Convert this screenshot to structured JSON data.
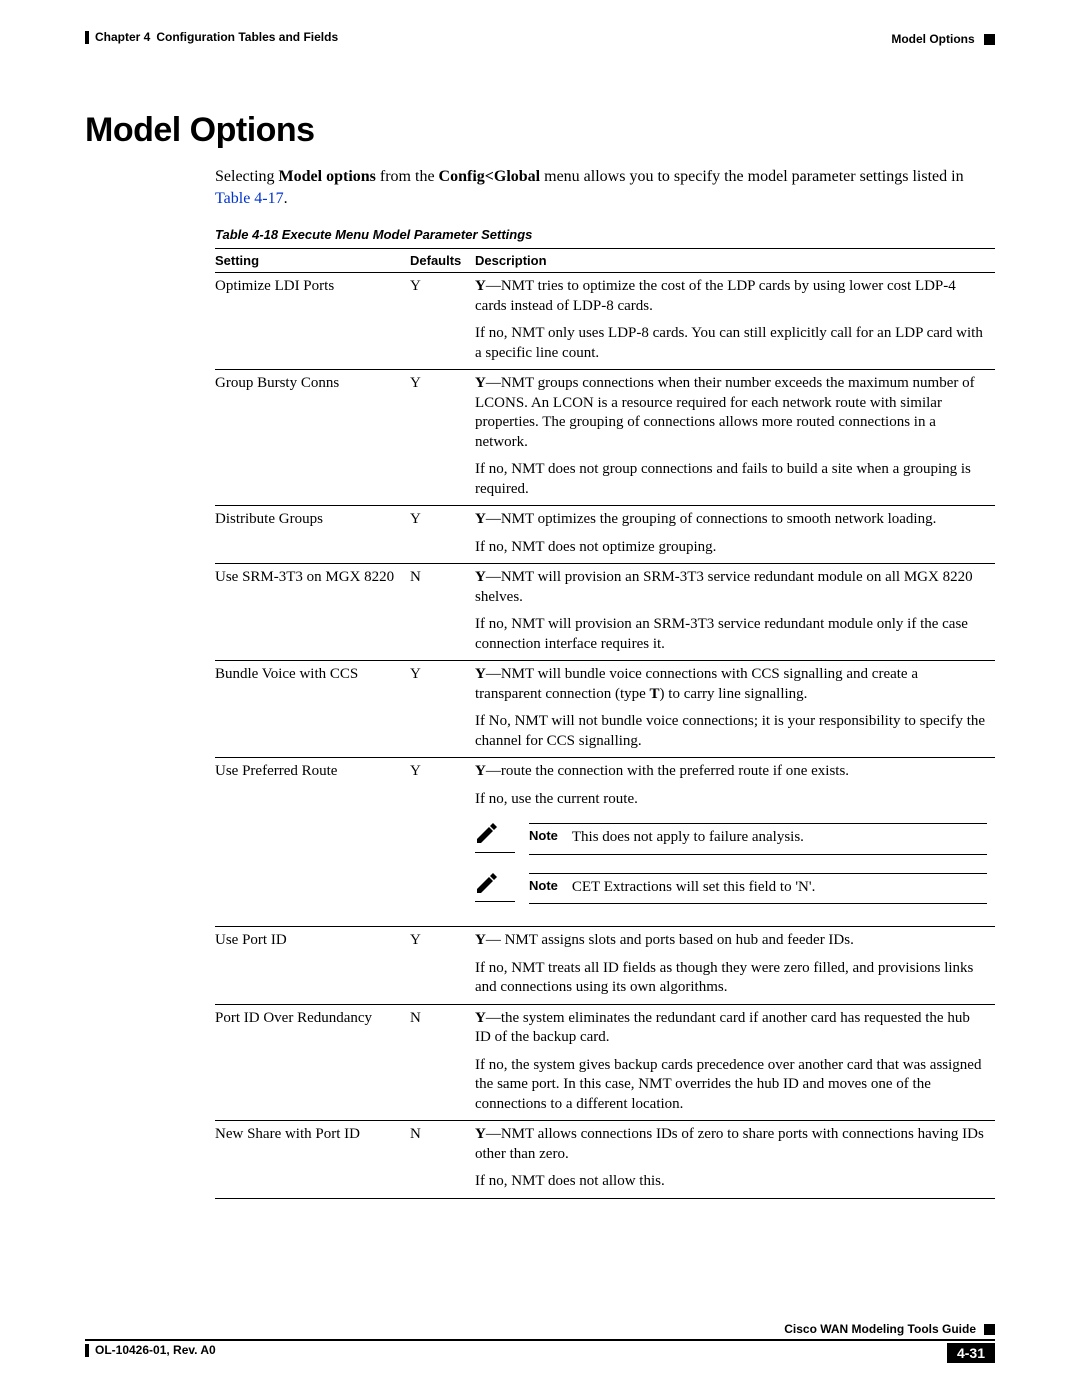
{
  "colors": {
    "text": "#000000",
    "link": "#0033cc",
    "background": "#ffffff"
  },
  "fontsizes": {
    "title_pt": 26,
    "body_pt": 11,
    "caption_pt": 10,
    "header_pt": 9
  },
  "header": {
    "chapter_label": "Chapter 4",
    "chapter_title": "Configuration Tables and Fields",
    "section": "Model Options"
  },
  "title": "Model Options",
  "intro": {
    "pre": "Selecting ",
    "bold1": "Model options",
    "mid1": " from the ",
    "bold2": "Config<Global",
    "mid2": " menu allows you to specify the model parameter settings listed in ",
    "link": "Table 4-17",
    "end": "."
  },
  "table_caption": "Table 4-18   Execute Menu Model Parameter Settings",
  "columns": {
    "setting": "Setting",
    "defaults": "Defaults",
    "description": "Description"
  },
  "note_label": "Note",
  "rows": [
    {
      "setting": "Optimize LDI Ports",
      "default": "Y",
      "desc": [
        {
          "bold_lead": "Y",
          "text": "—NMT tries to optimize the cost of the LDP cards by using lower cost LDP-4 cards instead of LDP-8 cards."
        },
        {
          "text": "If no, NMT only uses LDP-8 cards. You can still explicitly call for an LDP card with a specific line count."
        }
      ]
    },
    {
      "setting": "Group Bursty Conns",
      "default": "Y",
      "desc": [
        {
          "bold_lead": "Y",
          "text": "—NMT groups connections when their number exceeds the maximum number of LCONS. An LCON is a resource required for each network route with similar properties. The grouping of connections allows more routed connections in a network."
        },
        {
          "text": "If no, NMT does not group connections and fails to build a site when a grouping is required."
        }
      ]
    },
    {
      "setting": "Distribute Groups",
      "default": "Y",
      "desc": [
        {
          "bold_lead": "Y",
          "text": "—NMT optimizes the grouping of connections to smooth network loading."
        },
        {
          "text": "If no, NMT does not optimize grouping."
        }
      ]
    },
    {
      "setting": "Use SRM-3T3 on MGX 8220",
      "default": "N",
      "desc": [
        {
          "bold_lead": "Y",
          "text": "—NMT will provision an SRM-3T3 service redundant module on all MGX 8220 shelves."
        },
        {
          "text": "If no, NMT will provision an SRM-3T3 service redundant module only if the case connection interface requires it."
        }
      ]
    },
    {
      "setting": "Bundle Voice with CCS",
      "default": "Y",
      "desc": [
        {
          "bold_lead": "Y",
          "text_pre": "—NMT will bundle voice connections with CCS signalling and create a transparent connection (type ",
          "bold_inner": "T",
          "text_post": ") to carry line signalling."
        },
        {
          "text": "If No, NMT will not bundle voice connections; it is your responsibility to specify the channel for CCS signalling."
        }
      ]
    },
    {
      "setting": "Use Preferred Route",
      "default": "Y",
      "desc": [
        {
          "bold_lead": "Y",
          "text": "—route the connection with the preferred route if one exists."
        },
        {
          "text": "If no, use the current route."
        }
      ],
      "notes": [
        "This does not apply to failure analysis.",
        "CET Extractions will set this field to 'N'."
      ]
    },
    {
      "setting": "Use Port ID",
      "default": "Y",
      "desc": [
        {
          "bold_lead": "Y",
          "text": "— NMT assigns slots and ports based on hub and feeder IDs."
        },
        {
          "text": "If no, NMT treats all ID fields as though they were zero filled, and provisions links and connections using its own algorithms."
        }
      ]
    },
    {
      "setting": "Port ID Over Redundancy",
      "default": "N",
      "desc": [
        {
          "bold_lead": "Y",
          "text": "—the system eliminates the redundant card if another card has requested the hub ID of the backup card."
        },
        {
          "text": "If no, the system gives backup cards precedence over another card that was assigned the same port. In this case, NMT overrides the hub ID and moves one of the connections to a different location."
        }
      ]
    },
    {
      "setting": "New Share with Port ID",
      "default": "N",
      "desc": [
        {
          "bold_lead": "Y",
          "text": "—NMT allows connections IDs of zero to share ports with connections having IDs other than zero."
        },
        {
          "text": "If no, NMT does not allow this."
        }
      ]
    }
  ],
  "footer": {
    "guide": "Cisco WAN Modeling Tools Guide",
    "docnum": "OL-10426-01, Rev. A0",
    "pagenum": "4-31"
  }
}
